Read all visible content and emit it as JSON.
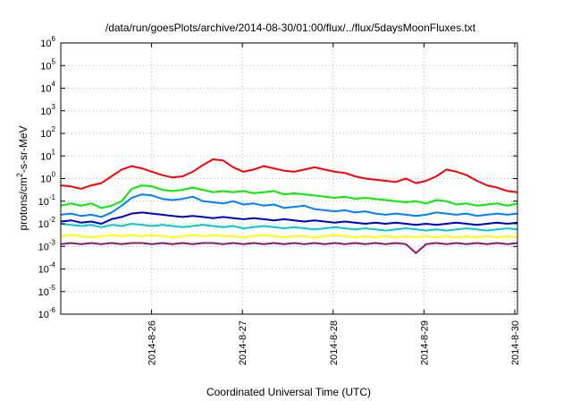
{
  "chart_data": {
    "type": "line",
    "title": "/data/run/goesPlots/archive/2014-08-30/01:00/flux/../flux/5daysMoonFluxes.txt",
    "xlabel": "Coordinated Universal Time (UTC)",
    "ylabel": {
      "base": "protons/cm",
      "sup": "2",
      "rest": "-s-sr-MeV"
    },
    "yscale": "log",
    "ylim": [
      1e-06,
      1000000.0
    ],
    "xlim": [
      0,
      5.03
    ],
    "y_ticks": [
      {
        "value": -6,
        "base": "10",
        "exp": "-6"
      },
      {
        "value": -5,
        "base": "10",
        "exp": "-5"
      },
      {
        "value": -4,
        "base": "10",
        "exp": "-4"
      },
      {
        "value": -3,
        "base": "10",
        "exp": "-3"
      },
      {
        "value": -2,
        "base": "10",
        "exp": "-2"
      },
      {
        "value": -1,
        "base": "10",
        "exp": "-1"
      },
      {
        "value": 0,
        "base": "10",
        "exp": "0"
      },
      {
        "value": 1,
        "base": "10",
        "exp": "1"
      },
      {
        "value": 2,
        "base": "10",
        "exp": "2"
      },
      {
        "value": 3,
        "base": "10",
        "exp": "3"
      },
      {
        "value": 4,
        "base": "10",
        "exp": "4"
      },
      {
        "value": 5,
        "base": "10",
        "exp": "5"
      },
      {
        "value": 6,
        "base": "10",
        "exp": "6"
      }
    ],
    "x_ticks": [
      {
        "value": 1,
        "label": "2014-8-26"
      },
      {
        "value": 2,
        "label": "2014-8-27"
      },
      {
        "value": 3,
        "label": "2014-8-28"
      },
      {
        "value": 4,
        "label": "2014-8-29"
      },
      {
        "value": 5,
        "label": "2014-8-30"
      }
    ],
    "grid": true,
    "series": [
      {
        "color": "#ff0000",
        "log10_values": [
          -0.3,
          -0.35,
          -0.45,
          -0.3,
          -0.2,
          0.1,
          0.4,
          0.55,
          0.45,
          0.3,
          0.15,
          0.05,
          0.1,
          0.3,
          0.6,
          0.85,
          0.8,
          0.5,
          0.3,
          0.4,
          0.55,
          0.45,
          0.35,
          0.3,
          0.4,
          0.5,
          0.4,
          0.3,
          0.25,
          0.1,
          0.0,
          -0.05,
          -0.1,
          -0.15,
          0.0,
          -0.2,
          -0.1,
          0.1,
          0.4,
          0.3,
          0.15,
          -0.1,
          -0.3,
          -0.4,
          -0.55,
          -0.6
        ]
      },
      {
        "color": "#00ee00",
        "log10_values": [
          -1.2,
          -1.1,
          -1.2,
          -1.1,
          -1.3,
          -1.2,
          -1.0,
          -0.45,
          -0.3,
          -0.35,
          -0.5,
          -0.55,
          -0.5,
          -0.4,
          -0.5,
          -0.6,
          -0.55,
          -0.6,
          -0.55,
          -0.65,
          -0.6,
          -0.55,
          -0.7,
          -0.65,
          -0.7,
          -0.75,
          -0.8,
          -0.85,
          -0.8,
          -0.9,
          -0.85,
          -0.9,
          -0.95,
          -1.0,
          -1.05,
          -1.0,
          -1.1,
          -0.95,
          -1.0,
          -1.15,
          -1.1,
          -1.2,
          -1.15,
          -1.1,
          -1.2,
          -1.1
        ]
      },
      {
        "color": "#0080ff",
        "log10_values": [
          -1.6,
          -1.55,
          -1.65,
          -1.6,
          -1.7,
          -1.5,
          -1.2,
          -0.85,
          -0.7,
          -0.75,
          -0.9,
          -0.95,
          -0.9,
          -0.8,
          -1.0,
          -1.05,
          -1.1,
          -1.0,
          -1.15,
          -1.1,
          -1.2,
          -1.15,
          -1.3,
          -1.25,
          -1.2,
          -1.35,
          -1.4,
          -1.45,
          -1.4,
          -1.5,
          -1.45,
          -1.55,
          -1.6,
          -1.55,
          -1.6,
          -1.65,
          -1.6,
          -1.5,
          -1.55,
          -1.6,
          -1.55,
          -1.65,
          -1.6,
          -1.55,
          -1.6,
          -1.55
        ]
      },
      {
        "color": "#0000cc",
        "log10_values": [
          -1.9,
          -1.85,
          -1.95,
          -1.9,
          -2.0,
          -1.8,
          -1.7,
          -1.55,
          -1.5,
          -1.55,
          -1.6,
          -1.65,
          -1.7,
          -1.65,
          -1.7,
          -1.75,
          -1.7,
          -1.75,
          -1.8,
          -1.75,
          -1.8,
          -1.85,
          -1.8,
          -1.85,
          -1.9,
          -1.85,
          -1.9,
          -1.95,
          -1.9,
          -1.95,
          -2.0,
          -1.95,
          -2.0,
          -1.95,
          -2.0,
          -2.05,
          -2.0,
          -2.05,
          -2.0,
          -1.95,
          -2.0,
          -2.05,
          -2.0,
          -1.95,
          -2.0,
          -1.95
        ]
      },
      {
        "color": "#00cccc",
        "log10_values": [
          -2.0,
          -2.05,
          -2.1,
          -2.05,
          -2.15,
          -2.05,
          -2.1,
          -2.0,
          -2.05,
          -2.1,
          -2.05,
          -2.1,
          -2.15,
          -2.1,
          -2.05,
          -2.1,
          -2.15,
          -2.1,
          -2.2,
          -2.15,
          -2.1,
          -2.15,
          -2.2,
          -2.15,
          -2.2,
          -2.25,
          -2.2,
          -2.15,
          -2.2,
          -2.25,
          -2.2,
          -2.25,
          -2.3,
          -2.25,
          -2.2,
          -2.25,
          -2.3,
          -2.25,
          -2.3,
          -2.25,
          -2.2,
          -2.25,
          -2.3,
          -2.25,
          -2.2,
          -2.25
        ]
      },
      {
        "color": "#ffff00",
        "log10_values": [
          -2.55,
          -2.5,
          -2.55,
          -2.6,
          -2.55,
          -2.5,
          -2.55,
          -2.5,
          -2.55,
          -2.5,
          -2.55,
          -2.6,
          -2.55,
          -2.5,
          -2.55,
          -2.5,
          -2.55,
          -2.55,
          -2.6,
          -2.55,
          -2.5,
          -2.55,
          -2.6,
          -2.55,
          -2.55,
          -2.6,
          -2.55,
          -2.5,
          -2.55,
          -2.6,
          -2.55,
          -2.6,
          -2.55,
          -2.6,
          -2.55,
          -2.6,
          -2.55,
          -2.6,
          -2.55,
          -2.6,
          -2.55,
          -2.6,
          -2.55,
          -2.6,
          -2.55,
          -2.6
        ]
      },
      {
        "color": "#8b1a6b",
        "log10_values": [
          -2.9,
          -2.85,
          -2.9,
          -2.85,
          -2.9,
          -2.85,
          -2.9,
          -2.85,
          -2.85,
          -2.9,
          -2.85,
          -2.9,
          -2.85,
          -2.9,
          -2.85,
          -2.85,
          -2.9,
          -2.85,
          -2.9,
          -2.85,
          -2.9,
          -2.85,
          -2.9,
          -2.85,
          -2.9,
          -2.85,
          -2.9,
          -2.85,
          -2.9,
          -2.85,
          -2.9,
          -2.85,
          -2.9,
          -2.85,
          -2.9,
          -3.3,
          -2.9,
          -2.85,
          -2.9,
          -2.85,
          -2.9,
          -2.85,
          -2.9,
          -2.85,
          -2.9,
          -2.85
        ]
      }
    ]
  }
}
